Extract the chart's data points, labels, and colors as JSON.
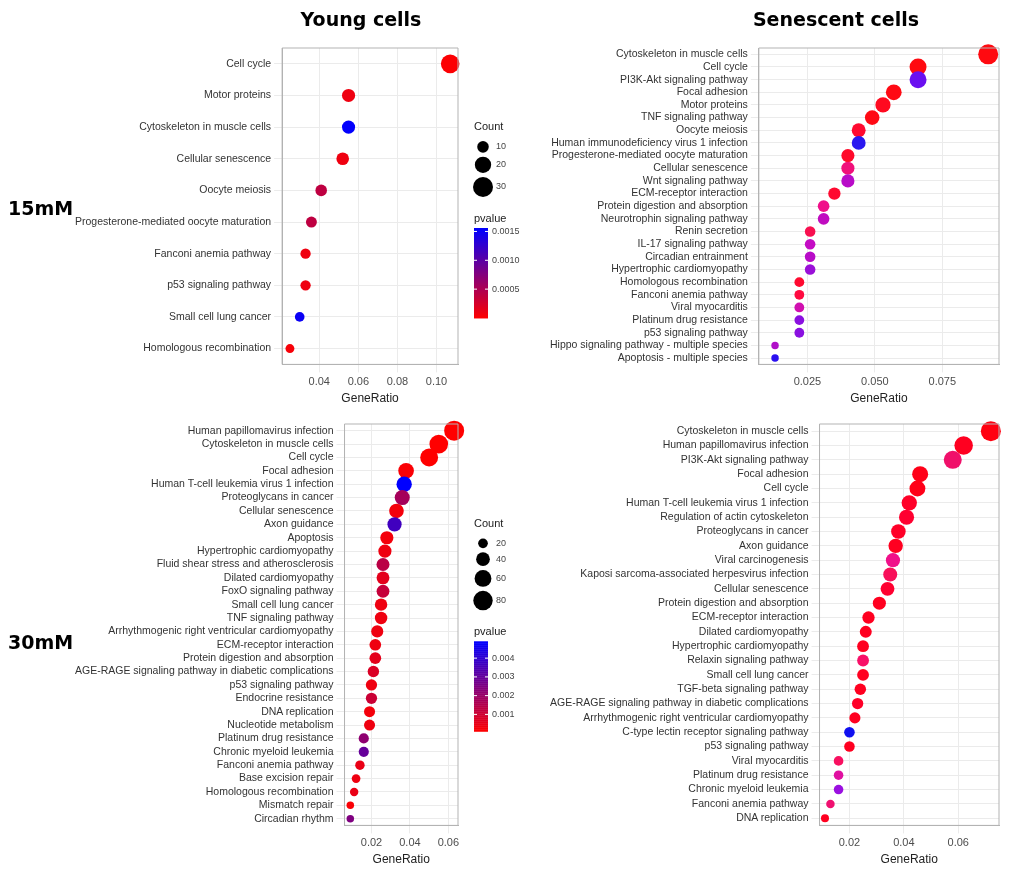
{
  "chart_data": [
    {
      "type": "bubble",
      "title": "Young cells",
      "annotations": [
        "15mM"
      ],
      "xlabel": "GeneRatio",
      "orientation": "horizontal",
      "grid": true,
      "categories": [
        "Cell cycle",
        "Motor proteins",
        "Cytoskeleton in muscle cells",
        "Cellular senescence",
        "Oocyte meiosis",
        "Progesterone-mediated oocyte maturation",
        "Fanconi anemia pathway",
        "p53 signaling pathway",
        "Small cell lung cancer",
        "Homologous recombination"
      ],
      "values": [
        0.107,
        0.055,
        0.055,
        0.052,
        0.041,
        0.036,
        0.033,
        0.033,
        0.03,
        0.025
      ],
      "sizes": [
        26,
        13,
        13,
        12,
        10,
        9,
        8,
        8,
        7,
        6
      ],
      "cvalues": [
        2e-05,
        0.0001,
        0.00155,
        0.0001,
        0.0004,
        0.0004,
        0.0001,
        0.0001,
        0.0015,
        5e-05
      ],
      "legend_title": "Count",
      "size_legend": [
        10,
        20,
        30
      ],
      "clabel": "pvalue",
      "clim": [
        0,
        0.00156
      ],
      "cticks": [
        0.0005,
        {
          "value": 0.001,
          "label": "0.0010"
        },
        0.0015
      ],
      "xlim": [
        0.021,
        0.111
      ],
      "xticks": [
        0.04,
        0.06,
        0.08,
        {
          "value": 0.1,
          "label": "0.10"
        }
      ]
    },
    {
      "type": "bubble",
      "title": "Senescent cells",
      "xlabel": "GeneRatio",
      "orientation": "horizontal",
      "grid": true,
      "categories": [
        "Cytoskeleton in muscle cells",
        "Cell cycle",
        "PI3K-Akt signaling pathway",
        "Focal adhesion",
        "Motor proteins",
        "TNF signaling pathway",
        "Oocyte meiosis",
        "Human immunodeficiency virus 1 infection",
        "Progesterone-mediated oocyte maturation",
        "Cellular senescence",
        "Wnt signaling pathway",
        "ECM-receptor interaction",
        "Protein digestion and absorption",
        "Neurotrophin signaling pathway",
        "Renin secretion",
        "IL-17 signaling pathway",
        "Circadian entrainment",
        "Hypertrophic cardiomyopathy",
        "Homologous recombination",
        "Fanconi anemia pathway",
        "Viral myocarditis",
        "Platinum drug resistance",
        "p53 signaling pathway",
        "Hippo signaling pathway - multiple species",
        "Apoptosis - multiple species"
      ],
      "values": [
        0.092,
        0.066,
        0.066,
        0.057,
        0.053,
        0.049,
        0.044,
        0.044,
        0.04,
        0.04,
        0.04,
        0.035,
        0.031,
        0.031,
        0.026,
        0.026,
        0.026,
        0.026,
        0.022,
        0.022,
        0.022,
        0.022,
        0.022,
        0.013,
        0.013
      ],
      "sizes": [
        1,
        0.72,
        0.72,
        0.62,
        0.58,
        0.53,
        0.48,
        0.48,
        0.43,
        0.43,
        0.43,
        0.38,
        0.34,
        0.34,
        0.28,
        0.28,
        0.28,
        0.28,
        0.24,
        0.24,
        0.24,
        0.24,
        0.24,
        0.14,
        0.14
      ],
      "colors": [
        "#ff0a10",
        "#ff0a10",
        "#6a10f0",
        "#ff0a14",
        "#ff0a20",
        "#ff0a14",
        "#ff0a30",
        "#2a18f0",
        "#ff0a2a",
        "#f0107a",
        "#b80cc8",
        "#ff0a30",
        "#f0108a",
        "#c00cc0",
        "#f81050",
        "#c40cc4",
        "#b80cc8",
        "#9a10d8",
        "#ff0a30",
        "#ff0a40",
        "#d010b0",
        "#8a10e0",
        "#8a10e0",
        "#b010c8",
        "#2a10f0"
      ],
      "xlim": [
        0.007,
        0.096
      ],
      "xticks": [
        0.025,
        {
          "value": 0.05,
          "label": "0.050"
        },
        0.075
      ]
    },
    {
      "type": "bubble",
      "annotations": [
        "30mM"
      ],
      "xlabel": "GeneRatio",
      "orientation": "horizontal",
      "grid": true,
      "categories": [
        "Human papillomavirus infection",
        "Cytoskeleton in muscle cells",
        "Cell cycle",
        "Focal adhesion",
        "Human T-cell leukemia virus 1 infection",
        "Proteoglycans in cancer",
        "Cellular senescence",
        "Axon guidance",
        "Apoptosis",
        "Hypertrophic cardiomyopathy",
        "Fluid shear stress and atherosclerosis",
        "Dilated cardiomyopathy",
        "FoxO signaling pathway",
        "Small cell lung cancer",
        "TNF signaling pathway",
        "Arrhythmogenic right ventricular cardiomyopathy",
        "ECM-receptor interaction",
        "Protein digestion and absorption",
        "AGE-RAGE signaling pathway in diabetic complications",
        "p53 signaling pathway",
        "Endocrine resistance",
        "DNA replication",
        "Nucleotide metabolism",
        "Platinum drug resistance",
        "Chronic myeloid leukemia",
        "Fanconi anemia pathway",
        "Base excision repair",
        "Homologous recombination",
        "Mismatch repair",
        "Circadian rhythm"
      ],
      "values": [
        0.063,
        0.055,
        0.05,
        0.038,
        0.037,
        0.036,
        0.033,
        0.032,
        0.028,
        0.027,
        0.026,
        0.026,
        0.026,
        0.025,
        0.025,
        0.023,
        0.022,
        0.022,
        0.021,
        0.02,
        0.02,
        0.019,
        0.019,
        0.016,
        0.016,
        0.014,
        0.012,
        0.011,
        0.009,
        0.009
      ],
      "sizes": [
        85,
        74,
        68,
        52,
        50,
        48,
        45,
        43,
        37,
        37,
        36,
        35,
        35,
        33,
        33,
        31,
        29,
        29,
        28,
        27,
        27,
        26,
        26,
        22,
        22,
        19,
        16,
        15,
        12,
        12
      ],
      "cvalues": [
        0.0001,
        0.0001,
        0.0001,
        0.0002,
        0.0049,
        0.0018,
        0.0003,
        0.0037,
        0.0003,
        0.0004,
        0.0014,
        0.0006,
        0.0012,
        0.0004,
        0.0004,
        0.0004,
        0.0004,
        0.0006,
        0.0008,
        0.0004,
        0.0011,
        0.0003,
        0.0004,
        0.0022,
        0.003,
        0.0005,
        0.0004,
        0.0005,
        0.0002,
        0.0025
      ],
      "legend_title": "Count",
      "size_legend": [
        20,
        40,
        60,
        80
      ],
      "clabel": "pvalue",
      "clim": [
        0.0001,
        0.0049
      ],
      "cticks": [
        0.001,
        0.002,
        0.003,
        0.004
      ],
      "xlim": [
        0.006,
        0.065
      ],
      "xticks": [
        0.02,
        0.04,
        0.06
      ]
    },
    {
      "type": "bubble",
      "xlabel": "GeneRatio",
      "orientation": "horizontal",
      "grid": true,
      "categories": [
        "Cytoskeleton in muscle cells",
        "Human papillomavirus infection",
        "PI3K-Akt signaling pathway",
        "Focal adhesion",
        "Cell cycle",
        "Human T-cell leukemia virus 1 infection",
        "Regulation of actin cytoskeleton",
        "Proteoglycans in cancer",
        "Axon guidance",
        "Viral carcinogenesis",
        "Kaposi sarcoma-associated herpesvirus infection",
        "Cellular senescence",
        "Protein digestion and absorption",
        "ECM-receptor interaction",
        "Dilated cardiomyopathy",
        "Hypertrophic cardiomyopathy",
        "Relaxin signaling pathway",
        "Small cell lung cancer",
        "TGF-beta signaling pathway",
        "AGE-RAGE signaling pathway in diabetic complications",
        "Arrhythmogenic right ventricular cardiomyopathy",
        "C-type lectin receptor signaling pathway",
        "p53 signaling pathway",
        "Viral myocarditis",
        "Platinum drug resistance",
        "Chronic myeloid leukemia",
        "Fanconi anemia pathway",
        "DNA replication"
      ],
      "values": [
        0.072,
        0.062,
        0.058,
        0.046,
        0.045,
        0.042,
        0.041,
        0.038,
        0.037,
        0.036,
        0.035,
        0.034,
        0.031,
        0.027,
        0.026,
        0.025,
        0.025,
        0.025,
        0.024,
        0.023,
        0.022,
        0.02,
        0.02,
        0.016,
        0.016,
        0.016,
        0.013,
        0.011
      ],
      "sizes": [
        1,
        0.86,
        0.81,
        0.64,
        0.63,
        0.59,
        0.57,
        0.53,
        0.52,
        0.5,
        0.49,
        0.48,
        0.43,
        0.38,
        0.36,
        0.35,
        0.35,
        0.35,
        0.33,
        0.32,
        0.31,
        0.28,
        0.28,
        0.23,
        0.23,
        0.23,
        0.18,
        0.16
      ],
      "colors": [
        "#ff0010",
        "#ff0020",
        "#f0106a",
        "#ff0018",
        "#ff0018",
        "#ff0028",
        "#ff0030",
        "#ff0028",
        "#ff0020",
        "#f0108a",
        "#f8105a",
        "#ff0030",
        "#ff0020",
        "#ff0020",
        "#ff0020",
        "#ff0020",
        "#f81068",
        "#ff0020",
        "#ff0020",
        "#ff0028",
        "#ff0020",
        "#1010f0",
        "#ff0020",
        "#f81060",
        "#e010a0",
        "#9a10e0",
        "#f01070",
        "#ff0020"
      ],
      "xlim": [
        0.009,
        0.075
      ],
      "xticks": [
        0.02,
        0.04,
        0.06
      ]
    }
  ]
}
